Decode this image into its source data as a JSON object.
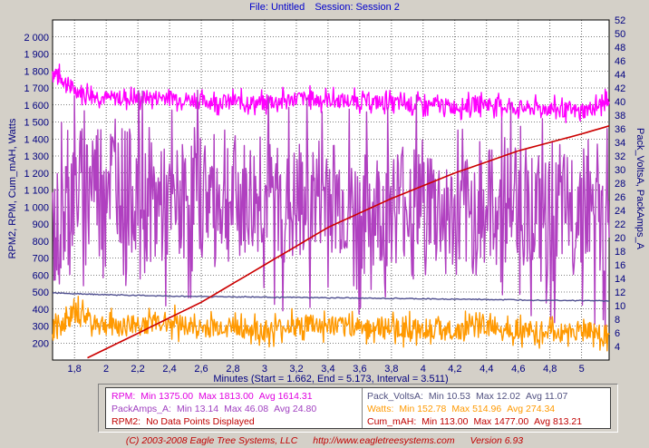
{
  "header": {
    "file": "File: Untitled",
    "session": "Session: Session 2"
  },
  "footer": {
    "copyright": "(C) 2003-2008 Eagle Tree Systems, LLC",
    "url": "http://www.eagletreesystems.com",
    "version": "Version 6.93"
  },
  "stats": [
    {
      "label": "RPM:",
      "min": "Min 1375.00",
      "max": "Max 1813.00",
      "avg": "Avg 1614.31",
      "color": "#e000e0"
    },
    {
      "label": "PackAmps_A:",
      "min": "Min 13.14",
      "max": "Max 46.08",
      "avg": "Avg 24.80",
      "color": "#a040c0"
    },
    {
      "label": "RPM2:",
      "min": "No Data Points Displayed",
      "max": "",
      "avg": "",
      "color": "#c00000"
    },
    {
      "label": "Pack_VoltsA:",
      "min": "Min 10.53",
      "max": "Max 12.02",
      "avg": "Avg 11.07",
      "color": "#505080"
    },
    {
      "label": "Watts:",
      "min": "Min 152.78",
      "max": "Max 514.96",
      "avg": "Avg 274.34",
      "color": "#ff9900"
    },
    {
      "label": "Cum_mAH:",
      "min": "Min 113.00",
      "max": "Max 1477.00",
      "avg": "Avg 813.21",
      "color": "#c00000"
    }
  ],
  "chart_data": {
    "type": "line",
    "xlabel": "Minutes (Start = 1.662,  End = 5.173,  Interval = 3.511)",
    "ylabel_left": "RPM2, RPM, Cum_mAH, Watts",
    "ylabel_right": "Pack_VoltsA, PackAmps_A",
    "xlim": [
      1.662,
      5.173
    ],
    "ylim_left": [
      100,
      2100
    ],
    "ylim_right": [
      2,
      52
    ],
    "x_ticks": [
      "1,8",
      "2",
      "2,2",
      "2,4",
      "2,6",
      "2,8",
      "3",
      "3,2",
      "3,4",
      "3,6",
      "3,8",
      "4",
      "4,2",
      "4,4",
      "4,6",
      "4,8",
      "5"
    ],
    "y_left_ticks": [
      "200",
      "300",
      "400",
      "500",
      "600",
      "700",
      "800",
      "900",
      "1 000",
      "1 100",
      "1 200",
      "1 300",
      "1 400",
      "1 500",
      "1 600",
      "1 700",
      "1 800",
      "1 900",
      "2 000"
    ],
    "y_right_ticks": [
      "4",
      "6",
      "8",
      "10",
      "12",
      "14",
      "16",
      "18",
      "20",
      "22",
      "24",
      "26",
      "28",
      "30",
      "32",
      "34",
      "36",
      "38",
      "40",
      "42",
      "44",
      "46",
      "48",
      "50",
      "52"
    ],
    "grid": true,
    "series": [
      {
        "name": "RPM",
        "axis": "left",
        "color": "#ff00ff",
        "x": [
          1.662,
          1.8,
          2.0,
          2.2,
          2.4,
          2.6,
          2.8,
          3.0,
          3.2,
          3.4,
          3.6,
          3.8,
          4.0,
          4.2,
          4.4,
          4.6,
          4.8,
          5.0,
          5.173
        ],
        "values": [
          1800,
          1690,
          1640,
          1640,
          1650,
          1620,
          1620,
          1610,
          1640,
          1630,
          1620,
          1610,
          1600,
          1590,
          1610,
          1580,
          1580,
          1560,
          1620
        ]
      },
      {
        "name": "PackAmps_A",
        "axis": "right",
        "color": "#b040c0",
        "x": [
          1.662,
          1.8,
          2.0,
          2.2,
          2.4,
          2.6,
          2.8,
          3.0,
          3.2,
          3.4,
          3.6,
          3.8,
          4.0,
          4.2,
          4.4,
          4.6,
          4.8,
          5.0,
          5.173
        ],
        "values": [
          20,
          27,
          30,
          26,
          24,
          27,
          25,
          26,
          24,
          27,
          23,
          25,
          26,
          22,
          24,
          26,
          22,
          25,
          20
        ]
      },
      {
        "name": "Pack_VoltsA",
        "axis": "right",
        "color": "#505090",
        "x": [
          1.662,
          2.0,
          2.4,
          2.8,
          3.2,
          3.6,
          4.0,
          4.4,
          4.8,
          5.173
        ],
        "values": [
          11.9,
          11.6,
          11.4,
          11.3,
          11.2,
          11.1,
          11.0,
          10.9,
          10.8,
          10.7
        ]
      },
      {
        "name": "Watts",
        "axis": "left",
        "color": "#ff9900",
        "x": [
          1.662,
          1.8,
          2.0,
          2.2,
          2.4,
          2.6,
          2.8,
          3.0,
          3.2,
          3.4,
          3.6,
          3.8,
          4.0,
          4.2,
          4.4,
          4.6,
          4.8,
          5.0,
          5.173
        ],
        "values": [
          260,
          380,
          300,
          310,
          330,
          280,
          300,
          260,
          310,
          290,
          300,
          280,
          290,
          270,
          300,
          280,
          260,
          270,
          250
        ]
      },
      {
        "name": "Cum_mAH",
        "axis": "left",
        "color": "#cc0000",
        "x": [
          1.882,
          2.2,
          2.6,
          3.0,
          3.4,
          3.8,
          4.2,
          4.6,
          5.0,
          5.173
        ],
        "values": [
          113,
          257,
          440,
          660,
          880,
          1050,
          1200,
          1330,
          1430,
          1477
        ]
      }
    ]
  }
}
